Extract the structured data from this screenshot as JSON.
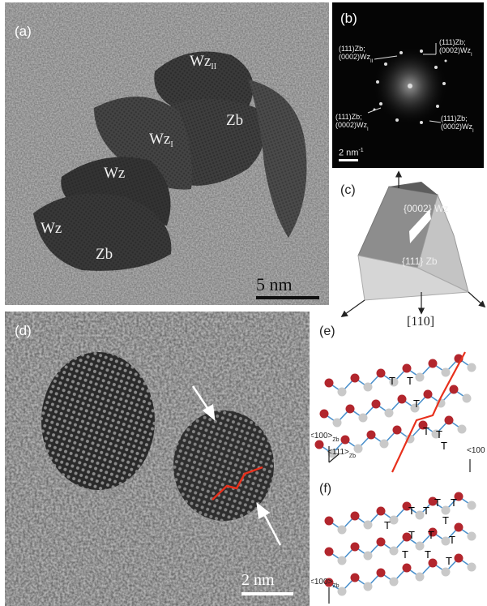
{
  "panel_a": {
    "label": "(a)",
    "grains": [
      "Wz",
      "Wz",
      "Zb",
      "Zb",
      "Wz",
      "Wz"
    ],
    "grain_subscripts": {
      "wz_top": "II",
      "wz_mid": "I"
    },
    "scale_bar": "5 nm"
  },
  "panel_b": {
    "label": "(b)",
    "spots": [
      "(111)Zb;\n(0002)Wz",
      "(111)Zb;\n(0002)Wz",
      "(111)Zb;\n(0002)Wz",
      "(111)Zb;\n(0002)Wz"
    ],
    "spot_subs": [
      "II",
      "I",
      "I",
      "I"
    ],
    "scale_bar": "2 nm",
    "scale_sup": "-1"
  },
  "panel_c": {
    "label": "(c)",
    "face_top": "{0002} Wz",
    "face_bottom": "{111} Zb",
    "direction": "[110]"
  },
  "panel_d": {
    "label": "(d)",
    "scale_bar": "2 nm"
  },
  "panel_e": {
    "label": "(e)",
    "axis_100": "<100>",
    "axis_111": "<111>",
    "axis_sub": "Zb",
    "axis_right": "<100",
    "tetra_marks": [
      "T",
      "T",
      "T",
      "T",
      "T",
      "T"
    ]
  },
  "panel_f": {
    "label": "(f)",
    "axis_100": "<100>",
    "axis_sub": "Zb",
    "tetra_marks": [
      "T",
      "T",
      "T",
      "T",
      "T",
      "T",
      "T",
      "T",
      "T",
      "T",
      "T",
      "T"
    ]
  },
  "colors": {
    "red_atom": "#b2262d",
    "grey_atom": "#c9c9c9",
    "bond": "#4a90cc",
    "boundary": "#e8301c"
  }
}
